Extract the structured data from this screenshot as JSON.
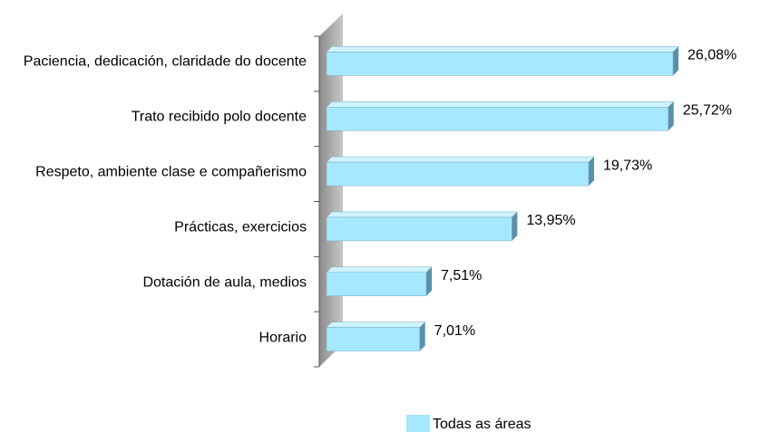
{
  "chart_data": {
    "type": "bar",
    "orientation": "horizontal",
    "categories": [
      "Paciencia, dedicación, claridade do docente",
      "Trato recibido polo docente",
      "Respeto, ambiente clase e compañerismo",
      "Prácticas, exercicios",
      "Dotación de aula, medios",
      "Horario"
    ],
    "series": [
      {
        "name": "Todas as áreas",
        "color": "#a6e8ff",
        "values": [
          26.08,
          25.72,
          19.73,
          13.95,
          7.51,
          7.01
        ],
        "value_labels": [
          "26,08%",
          "25,72%",
          "19,73%",
          "13,95%",
          "7,51%",
          "7,01%"
        ]
      }
    ],
    "legend": "bottom"
  }
}
